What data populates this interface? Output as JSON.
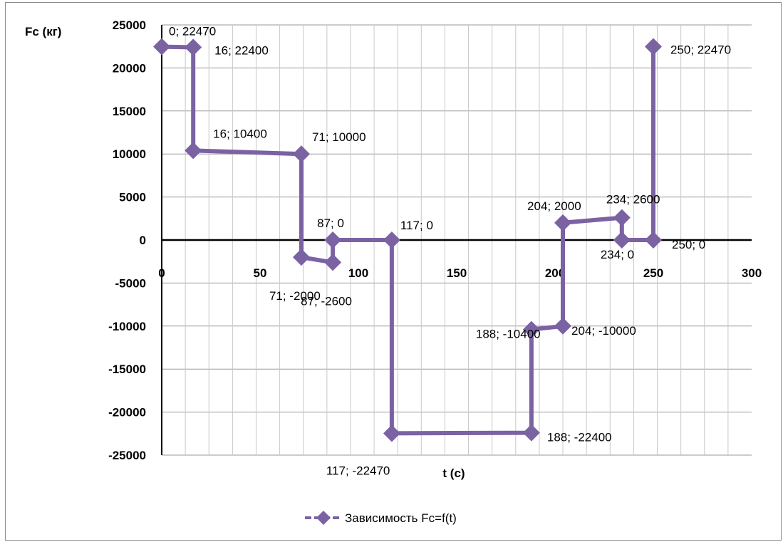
{
  "chart_data": {
    "type": "line",
    "ylabel": "Fc (кг)",
    "xlabel": "t (c)",
    "xlim": [
      0,
      300
    ],
    "ylim": [
      -25000,
      25000
    ],
    "x_ticks": [
      "0",
      "50",
      "100",
      "150",
      "200",
      "250",
      "300"
    ],
    "y_ticks": [
      "25000",
      "20000",
      "15000",
      "10000",
      "5000",
      "0",
      "-5000",
      "-10000",
      "-15000",
      "-20000",
      "-25000"
    ],
    "grid": true,
    "legend_position": "bottom",
    "series": [
      {
        "name": "Зависимость Fc=f(t)",
        "color": "#7b62a3",
        "marker": "diamond",
        "points": [
          {
            "x": 0,
            "y": 22470,
            "label": "0; 22470"
          },
          {
            "x": 16,
            "y": 22400,
            "label": "16; 22400"
          },
          {
            "x": 16,
            "y": 10400,
            "label": "16; 10400"
          },
          {
            "x": 71,
            "y": 10000,
            "label": "71; 10000"
          },
          {
            "x": 71,
            "y": -2000,
            "label": "71; -2000"
          },
          {
            "x": 87,
            "y": -2600,
            "label": "87; -2600"
          },
          {
            "x": 87,
            "y": 0,
            "label": "87; 0"
          },
          {
            "x": 117,
            "y": 0,
            "label": "117; 0"
          },
          {
            "x": 117,
            "y": -22470,
            "label": "117; -22470"
          },
          {
            "x": 188,
            "y": -22400,
            "label": "188; -22400"
          },
          {
            "x": 188,
            "y": -10400,
            "label": "188; -10400"
          },
          {
            "x": 204,
            "y": -10000,
            "label": "204; -10000"
          },
          {
            "x": 204,
            "y": 2000,
            "label": "204; 2000"
          },
          {
            "x": 234,
            "y": 2600,
            "label": "234; 2600"
          },
          {
            "x": 234,
            "y": 0,
            "label": "234; 0"
          },
          {
            "x": 250,
            "y": 0,
            "label": "250; 0"
          },
          {
            "x": 250,
            "y": 22470,
            "label": "250; 22470"
          }
        ]
      }
    ]
  }
}
